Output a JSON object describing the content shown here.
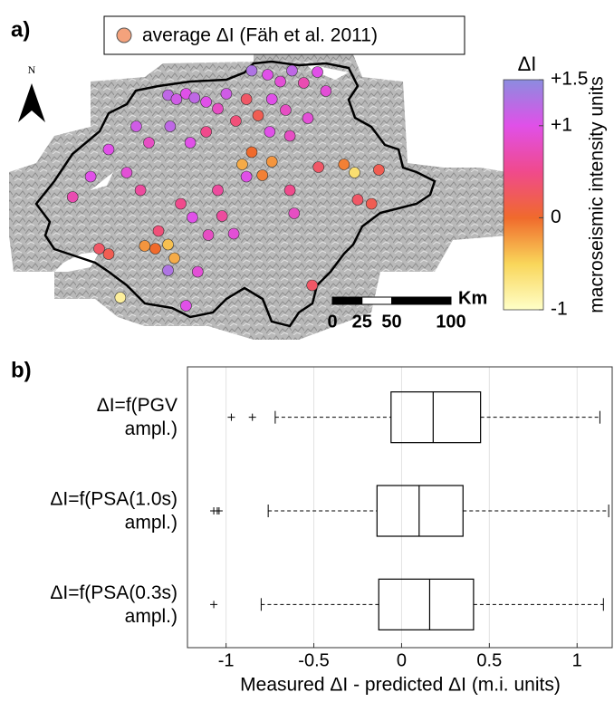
{
  "chart_data": [
    {
      "type": "map",
      "panel_label": "a)",
      "legend_label": "average ΔI (Fäh et al. 2011)",
      "legend_color": "#f4a27c",
      "north_label": "N",
      "xlim": [
        5.9,
        10.6
      ],
      "ylim": [
        45.75,
        47.85
      ],
      "points": {
        "lon": [
          7.4,
          7.48,
          7.57,
          7.65,
          7.76,
          7.87,
          7.95,
          8.19,
          8.34,
          8.46,
          8.57,
          8.68,
          8.81,
          8.89,
          8.38,
          8.51,
          8.14,
          8.04,
          8.25,
          8.36,
          8.55,
          8.72,
          7.76,
          7.61,
          7.42,
          7.22,
          7.1,
          6.84,
          6.67,
          6.5,
          7.01,
          7.14,
          7.52,
          7.87,
          8.14,
          8.1,
          8.19,
          8.38,
          8.29,
          8.55,
          8.82,
          9.06,
          9.16,
          9.39,
          9.19,
          9.32,
          8.59,
          7.91,
          7.63,
          7.31,
          7.18,
          7.28,
          7.4,
          7.46,
          7.4,
          6.84,
          6.75,
          7.68,
          7.57,
          6.95,
          8.76,
          7.78,
          8.02
        ],
        "lat": [
          47.55,
          47.52,
          47.56,
          47.53,
          47.5,
          47.45,
          47.56,
          47.73,
          47.7,
          47.65,
          47.73,
          47.64,
          47.72,
          47.58,
          47.52,
          47.44,
          47.52,
          47.36,
          47.4,
          47.28,
          47.25,
          47.38,
          47.28,
          47.2,
          47.32,
          47.2,
          47.32,
          47.15,
          46.95,
          46.8,
          46.98,
          46.85,
          46.75,
          46.85,
          46.95,
          47.04,
          47.13,
          47.06,
          46.96,
          46.85,
          47.02,
          47.04,
          46.98,
          47.0,
          46.78,
          46.75,
          46.68,
          46.66,
          46.65,
          46.55,
          46.44,
          46.42,
          46.45,
          46.35,
          46.26,
          46.38,
          46.42,
          46.25,
          46.0,
          46.06,
          46.15,
          46.52,
          46.53
        ],
        "values": [
          1.2,
          1.1,
          1.0,
          1.2,
          1.0,
          0.8,
          1.1,
          1.3,
          1.0,
          0.9,
          1.2,
          0.7,
          1.0,
          0.9,
          1.0,
          0.8,
          0.3,
          0.4,
          0.2,
          1.0,
          0.8,
          0.9,
          0.5,
          1.0,
          1.2,
          0.8,
          1.1,
          1.0,
          1.0,
          0.7,
          0.9,
          0.6,
          0.5,
          0.6,
          1.0,
          -0.3,
          0.0,
          -0.2,
          -0.1,
          0.5,
          0.3,
          -0.1,
          -0.6,
          0.2,
          0.3,
          0.2,
          0.8,
          0.6,
          1.0,
          0.4,
          -0.2,
          0.0,
          -0.4,
          -0.3,
          1.3,
          0.2,
          0.3,
          0.9,
          1.0,
          -0.8,
          0.3,
          0.8,
          0.9
        ]
      },
      "colorbar": {
        "title": "ΔI",
        "label": "macroseismic intensity units",
        "clim": [
          -1,
          1.5
        ],
        "ticks": [
          -1,
          0,
          {
            "value": 1,
            "label": "+1"
          },
          {
            "value": 1.5,
            "label": "+1.5"
          }
        ],
        "colormap": [
          "#ffffc8",
          "#f9d65a",
          "#f06a2c",
          "#f04a8c",
          "#e050e8",
          "#8c8ce0"
        ]
      },
      "scalebar": {
        "unit": "Km",
        "ticks": [
          0,
          25,
          50,
          100
        ]
      }
    },
    {
      "type": "box",
      "panel_label": "b)",
      "xlabel": "Measured ΔI - predicted ΔI (m.i. units)",
      "xlim": [
        -1.22,
        1.2
      ],
      "xticks": [
        -1,
        -0.5,
        0,
        0.5,
        1
      ],
      "grid": true,
      "categories": [
        [
          "ΔI=f(PGV",
          "ampl.)"
        ],
        [
          "ΔI=f(PSA(1.0s)",
          "ampl.)"
        ],
        [
          "ΔI=f(PSA(0.3s)",
          "ampl.)"
        ]
      ],
      "boxes": [
        {
          "lower_whisker": -0.72,
          "q1": -0.06,
          "median": 0.18,
          "q3": 0.45,
          "upper_whisker": 1.13,
          "outliers": [
            -0.97,
            -0.85
          ]
        },
        {
          "lower_whisker": -0.76,
          "q1": -0.14,
          "median": 0.1,
          "q3": 0.35,
          "upper_whisker": 1.18,
          "outliers": [
            -1.07,
            -1.05,
            -1.04
          ]
        },
        {
          "lower_whisker": -0.8,
          "q1": -0.13,
          "median": 0.16,
          "q3": 0.41,
          "upper_whisker": 1.15,
          "outliers": [
            -1.07
          ]
        }
      ]
    }
  ]
}
